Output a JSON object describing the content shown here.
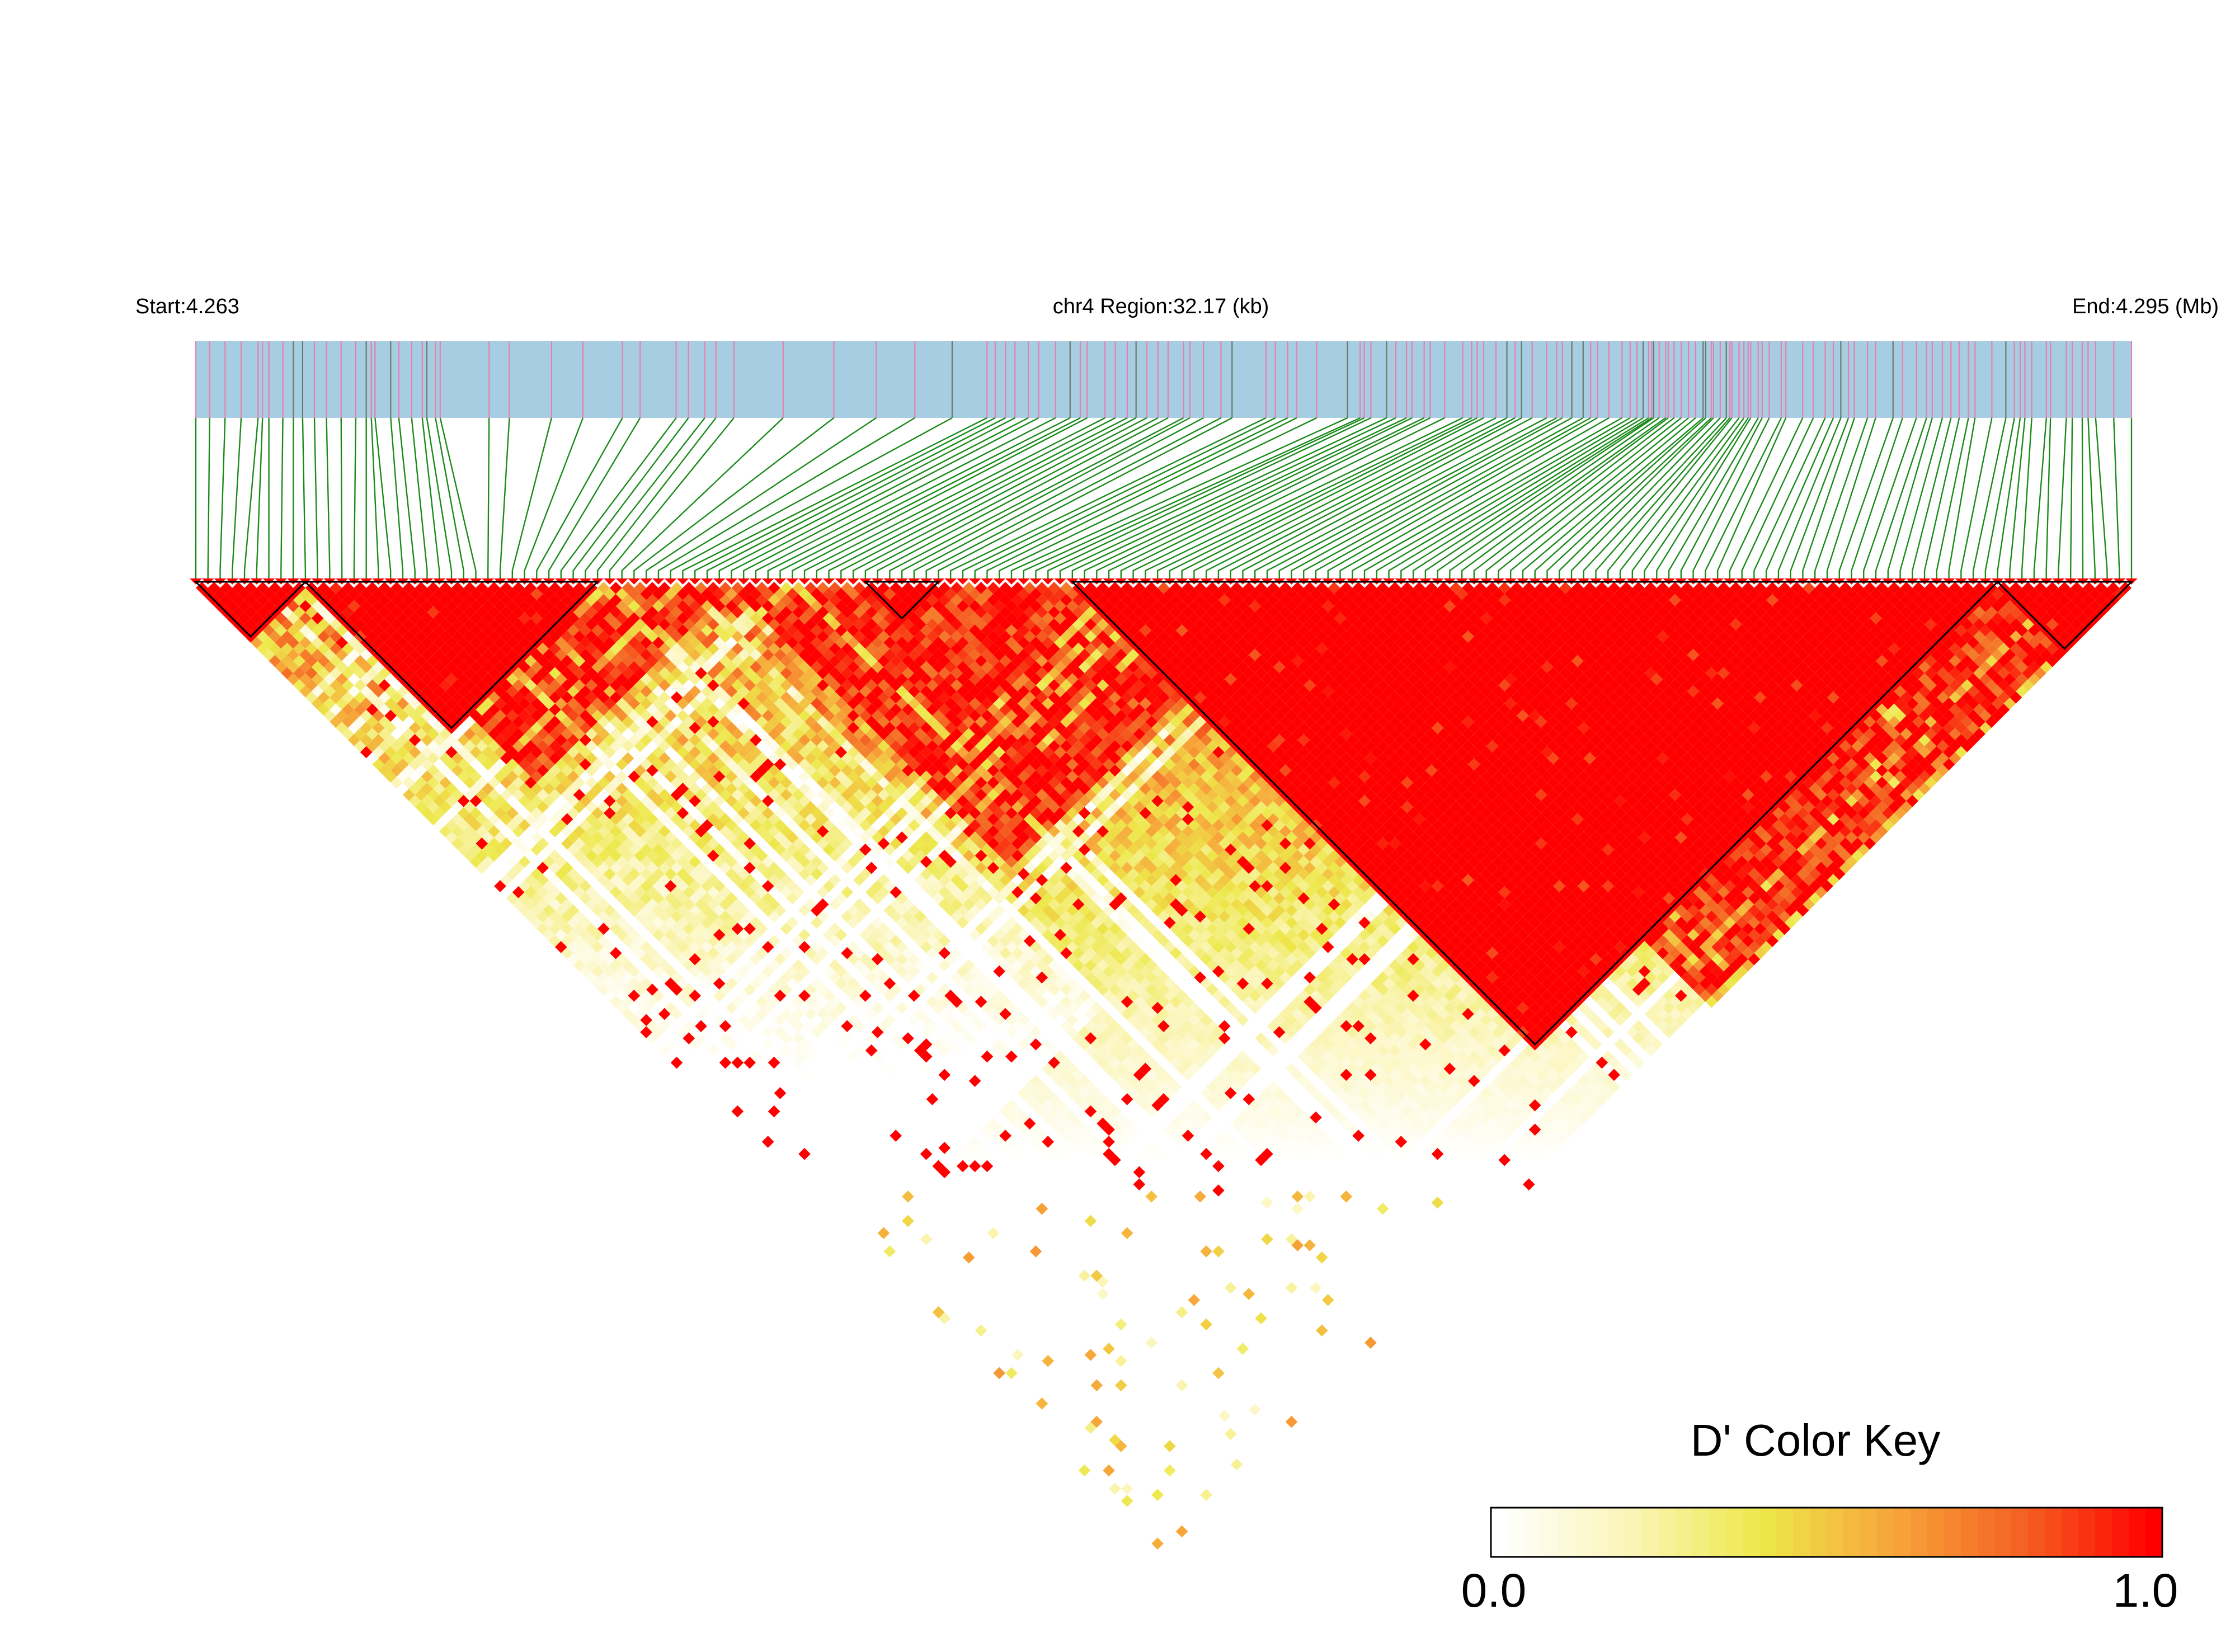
{
  "chart_data": {
    "type": "heatmap",
    "subtype": "ld-triangle",
    "header": {
      "start_label": "Start:4.263",
      "region_label": "chr4 Region:32.17 (kb)",
      "end_label": "End:4.295 (Mb)"
    },
    "region": {
      "chromosome": "chr4",
      "start_mb": 4.263,
      "end_mb": 4.295,
      "length_kb": 32.17
    },
    "n_snps": 160,
    "metric": "D'",
    "legend": {
      "title": "D' Color Key",
      "min_label": "0.0",
      "max_label": "1.0",
      "range": [
        0.0,
        1.0
      ],
      "colormap": [
        "#ffffff",
        "#fbf5b8",
        "#ede84a",
        "#f7a63a",
        "#f46122",
        "#ff0000"
      ]
    },
    "haplotype_blocks_snp_index": [
      [
        0,
        9
      ],
      [
        9,
        33
      ],
      [
        55,
        61
      ],
      [
        72,
        148
      ],
      [
        148,
        159
      ]
    ],
    "strong_ld_bands_snp_index": [
      [
        12,
        44
      ],
      [
        44,
        90
      ],
      [
        90,
        159
      ]
    ],
    "colors": {
      "track_fill": "#a6cde1",
      "snp_tick_pink": "#e87fb0",
      "snp_tick_dark": "#6a7a6a",
      "connector": "#1a8a1a",
      "block_outline": "#000000",
      "high_ld": "#ff0000"
    }
  }
}
